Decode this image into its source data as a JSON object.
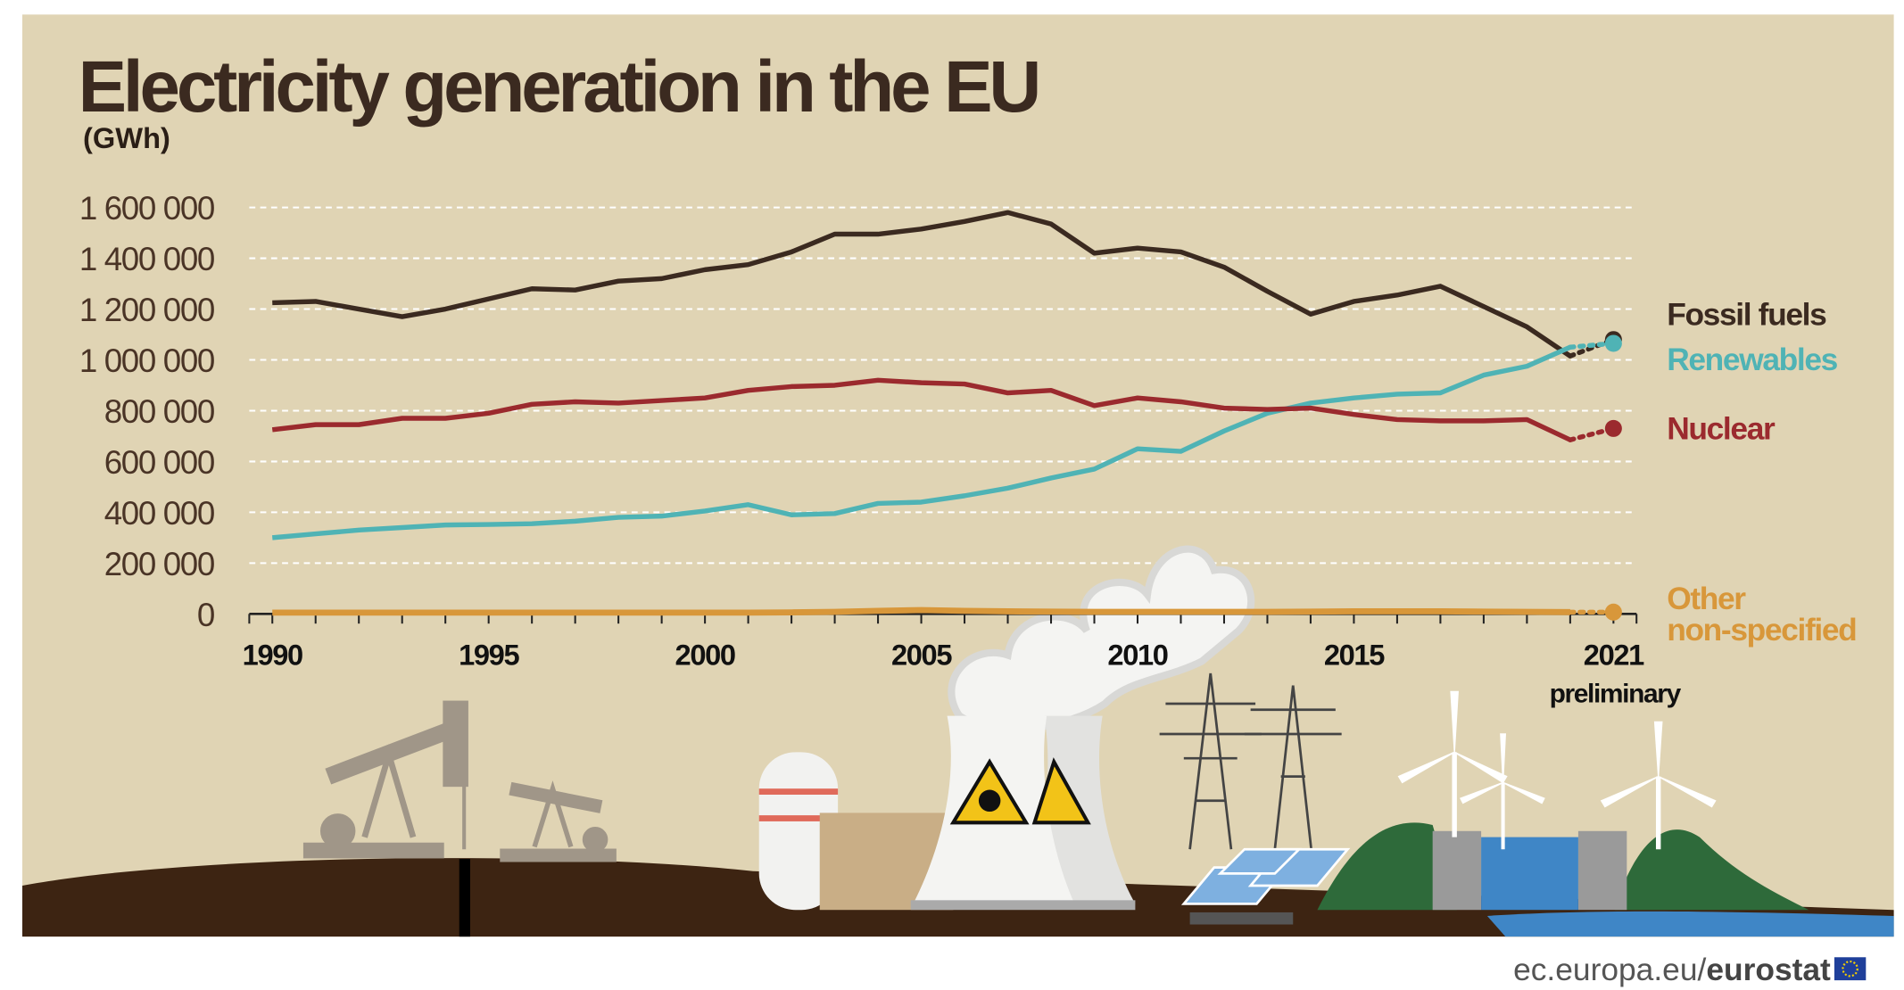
{
  "chart_data": {
    "type": "line",
    "title": "Electricity generation in the EU",
    "unit_label": "(GWh)",
    "xlabel": "",
    "ylabel": "GWh",
    "ylim": [
      0,
      1600000
    ],
    "xlim": [
      1990,
      2021
    ],
    "grid": true,
    "yticks": [
      0,
      200000,
      400000,
      600000,
      800000,
      1000000,
      1200000,
      1400000,
      1600000
    ],
    "ytick_labels": [
      "0",
      "200 000",
      "400 000",
      "600 000",
      "800 000",
      "1 000 000",
      "1 200 000",
      "1 400 000",
      "1 600 000"
    ],
    "xtick_labels": [
      "1990",
      "1995",
      "2000",
      "2005",
      "2010",
      "2015",
      "2021"
    ],
    "xtick_values": [
      1990,
      1995,
      2000,
      2005,
      2010,
      2015,
      2021
    ],
    "annotation": "preliminary",
    "legend_placement": "right",
    "x": [
      1990,
      1991,
      1992,
      1993,
      1994,
      1995,
      1996,
      1997,
      1998,
      1999,
      2000,
      2001,
      2002,
      2003,
      2004,
      2005,
      2006,
      2007,
      2008,
      2009,
      2010,
      2011,
      2012,
      2013,
      2014,
      2015,
      2016,
      2017,
      2018,
      2019,
      2020,
      2021
    ],
    "series": [
      {
        "name": "Fossil fuels",
        "color": "#3b2a20",
        "values": [
          1225000,
          1230000,
          1200000,
          1170000,
          1200000,
          1240000,
          1280000,
          1275000,
          1310000,
          1320000,
          1355000,
          1375000,
          1425000,
          1495000,
          1495000,
          1515000,
          1545000,
          1580000,
          1535000,
          1420000,
          1440000,
          1425000,
          1365000,
          1270000,
          1180000,
          1230000,
          1255000,
          1290000,
          1210000,
          1130000,
          1015000,
          1080000
        ]
      },
      {
        "name": "Renewables",
        "color": "#4fb3b5",
        "values": [
          300000,
          315000,
          330000,
          340000,
          350000,
          352000,
          355000,
          365000,
          380000,
          385000,
          405000,
          430000,
          390000,
          395000,
          435000,
          440000,
          465000,
          495000,
          535000,
          570000,
          650000,
          640000,
          720000,
          790000,
          830000,
          850000,
          865000,
          870000,
          940000,
          975000,
          1050000,
          1065000
        ]
      },
      {
        "name": "Nuclear",
        "color": "#9b2a2e",
        "values": [
          725000,
          745000,
          745000,
          770000,
          770000,
          790000,
          825000,
          835000,
          830000,
          840000,
          850000,
          880000,
          895000,
          900000,
          920000,
          910000,
          905000,
          870000,
          880000,
          820000,
          850000,
          835000,
          810000,
          805000,
          810000,
          785000,
          765000,
          760000,
          760000,
          765000,
          685000,
          730000
        ]
      },
      {
        "name": "Other non-specified",
        "label_lines": [
          "Other",
          "non-specified"
        ],
        "color": "#d8973a",
        "values": [
          5000,
          5000,
          5000,
          5000,
          5000,
          5000,
          5000,
          5000,
          5000,
          5000,
          5000,
          5000,
          6000,
          8000,
          12000,
          15000,
          12000,
          10000,
          9000,
          8000,
          8000,
          8000,
          8000,
          8000,
          9000,
          10000,
          10000,
          10000,
          9000,
          8000,
          7000,
          7000
        ]
      }
    ]
  },
  "footer": {
    "source_prefix": "ec.europa.eu/",
    "source_brand": "eurostat"
  },
  "colors": {
    "background": "#e0d4b4",
    "ground": "#3d2412",
    "grid": "#ffffff"
  }
}
